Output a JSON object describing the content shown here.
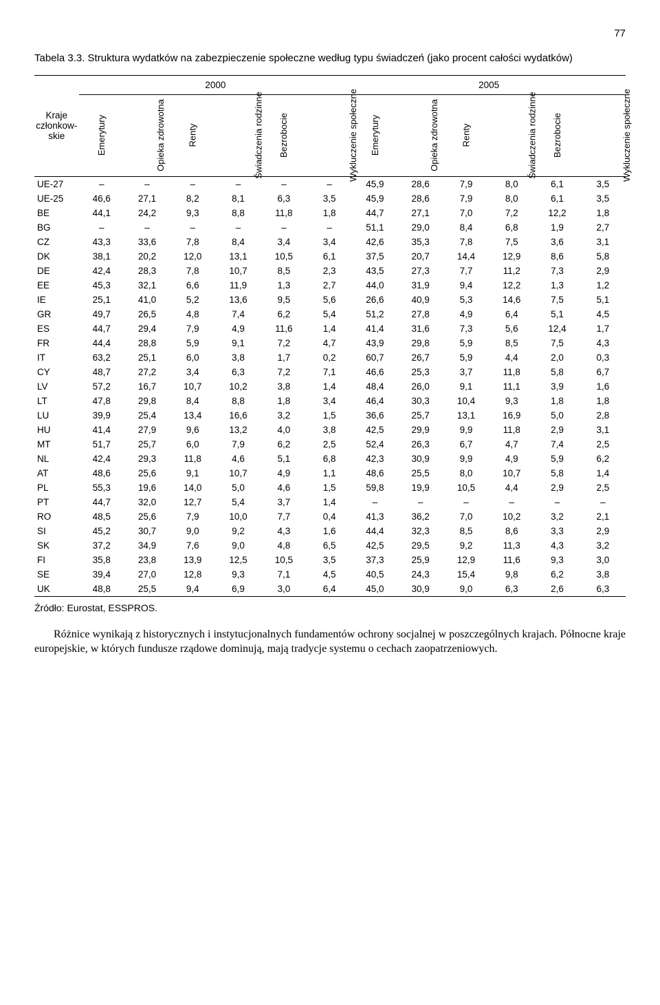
{
  "page_number": "77",
  "caption": "Tabela 3.3. Struktura wydatków na zabezpieczenie społeczne według typu świadczeń (jako procent całości wydatków)",
  "year_headers": [
    "2000",
    "2005"
  ],
  "row_label_header": "Kraje człon­kow­skie",
  "col_headers": [
    "Emerytury",
    "Opieka zdro­wotna",
    "Renty",
    "Świadczenia rodzinne",
    "Bezrobocie",
    "Wykluczenie społeczne",
    "Emerytury",
    "Opieka zdro­wotna",
    "Renty",
    "Świadczenia rodzinne",
    "Bezrobocie",
    "Wykluczenie społeczne"
  ],
  "rows": [
    {
      "label": "UE-27",
      "v": [
        "–",
        "–",
        "–",
        "–",
        "–",
        "–",
        "45,9",
        "28,6",
        "7,9",
        "8,0",
        "6,1",
        "3,5"
      ]
    },
    {
      "label": "UE-25",
      "v": [
        "46,6",
        "27,1",
        "8,2",
        "8,1",
        "6,3",
        "3,5",
        "45,9",
        "28,6",
        "7,9",
        "8,0",
        "6,1",
        "3,5"
      ]
    },
    {
      "label": "BE",
      "v": [
        "44,1",
        "24,2",
        "9,3",
        "8,8",
        "11,8",
        "1,8",
        "44,7",
        "27,1",
        "7,0",
        "7,2",
        "12,2",
        "1,8"
      ]
    },
    {
      "label": "BG",
      "v": [
        "–",
        "–",
        "–",
        "–",
        "–",
        "–",
        "51,1",
        "29,0",
        "8,4",
        "6,8",
        "1,9",
        "2,7"
      ]
    },
    {
      "label": "CZ",
      "v": [
        "43,3",
        "33,6",
        "7,8",
        "8,4",
        "3,4",
        "3,4",
        "42,6",
        "35,3",
        "7,8",
        "7,5",
        "3,6",
        "3,1"
      ]
    },
    {
      "label": "DK",
      "v": [
        "38,1",
        "20,2",
        "12,0",
        "13,1",
        "10,5",
        "6,1",
        "37,5",
        "20,7",
        "14,4",
        "12,9",
        "8,6",
        "5,8"
      ]
    },
    {
      "label": "DE",
      "v": [
        "42,4",
        "28,3",
        "7,8",
        "10,7",
        "8,5",
        "2,3",
        "43,5",
        "27,3",
        "7,7",
        "11,2",
        "7,3",
        "2,9"
      ]
    },
    {
      "label": "EE",
      "v": [
        "45,3",
        "32,1",
        "6,6",
        "11,9",
        "1,3",
        "2,7",
        "44,0",
        "31,9",
        "9,4",
        "12,2",
        "1,3",
        "1,2"
      ]
    },
    {
      "label": "IE",
      "v": [
        "25,1",
        "41,0",
        "5,2",
        "13,6",
        "9,5",
        "5,6",
        "26,6",
        "40,9",
        "5,3",
        "14,6",
        "7,5",
        "5,1"
      ]
    },
    {
      "label": "GR",
      "v": [
        "49,7",
        "26,5",
        "4,8",
        "7,4",
        "6,2",
        "5,4",
        "51,2",
        "27,8",
        "4,9",
        "6,4",
        "5,1",
        "4,5"
      ]
    },
    {
      "label": "ES",
      "v": [
        "44,7",
        "29,4",
        "7,9",
        "4,9",
        "11,6",
        "1,4",
        "41,4",
        "31,6",
        "7,3",
        "5,6",
        "12,4",
        "1,7"
      ]
    },
    {
      "label": "FR",
      "v": [
        "44,4",
        "28,8",
        "5,9",
        "9,1",
        "7,2",
        "4,7",
        "43,9",
        "29,8",
        "5,9",
        "8,5",
        "7,5",
        "4,3"
      ]
    },
    {
      "label": "IT",
      "v": [
        "63,2",
        "25,1",
        "6,0",
        "3,8",
        "1,7",
        "0,2",
        "60,7",
        "26,7",
        "5,9",
        "4,4",
        "2,0",
        "0,3"
      ]
    },
    {
      "label": "CY",
      "v": [
        "48,7",
        "27,2",
        "3,4",
        "6,3",
        "7,2",
        "7,1",
        "46,6",
        "25,3",
        "3,7",
        "11,8",
        "5,8",
        "6,7"
      ]
    },
    {
      "label": "LV",
      "v": [
        "57,2",
        "16,7",
        "10,7",
        "10,2",
        "3,8",
        "1,4",
        "48,4",
        "26,0",
        "9,1",
        "11,1",
        "3,9",
        "1,6"
      ]
    },
    {
      "label": "LT",
      "v": [
        "47,8",
        "29,8",
        "8,4",
        "8,8",
        "1,8",
        "3,4",
        "46,4",
        "30,3",
        "10,4",
        "9,3",
        "1,8",
        "1,8"
      ]
    },
    {
      "label": "LU",
      "v": [
        "39,9",
        "25,4",
        "13,4",
        "16,6",
        "3,2",
        "1,5",
        "36,6",
        "25,7",
        "13,1",
        "16,9",
        "5,0",
        "2,8"
      ]
    },
    {
      "label": "HU",
      "v": [
        "41,4",
        "27,9",
        "9,6",
        "13,2",
        "4,0",
        "3,8",
        "42,5",
        "29,9",
        "9,9",
        "11,8",
        "2,9",
        "3,1"
      ]
    },
    {
      "label": "MT",
      "v": [
        "51,7",
        "25,7",
        "6,0",
        "7,9",
        "6,2",
        "2,5",
        "52,4",
        "26,3",
        "6,7",
        "4,7",
        "7,4",
        "2,5"
      ]
    },
    {
      "label": "NL",
      "v": [
        "42,4",
        "29,3",
        "11,8",
        "4,6",
        "5,1",
        "6,8",
        "42,3",
        "30,9",
        "9,9",
        "4,9",
        "5,9",
        "6,2"
      ]
    },
    {
      "label": "AT",
      "v": [
        "48,6",
        "25,6",
        "9,1",
        "10,7",
        "4,9",
        "1,1",
        "48,6",
        "25,5",
        "8,0",
        "10,7",
        "5,8",
        "1,4"
      ]
    },
    {
      "label": "PL",
      "v": [
        "55,3",
        "19,6",
        "14,0",
        "5,0",
        "4,6",
        "1,5",
        "59,8",
        "19,9",
        "10,5",
        "4,4",
        "2,9",
        "2,5"
      ]
    },
    {
      "label": "PT",
      "v": [
        "44,7",
        "32,0",
        "12,7",
        "5,4",
        "3,7",
        "1,4",
        "–",
        "–",
        "–",
        "–",
        "–",
        "–"
      ]
    },
    {
      "label": "RO",
      "v": [
        "48,5",
        "25,6",
        "7,9",
        "10,0",
        "7,7",
        "0,4",
        "41,3",
        "36,2",
        "7,0",
        "10,2",
        "3,2",
        "2,1"
      ]
    },
    {
      "label": "SI",
      "v": [
        "45,2",
        "30,7",
        "9,0",
        "9,2",
        "4,3",
        "1,6",
        "44,4",
        "32,3",
        "8,5",
        "8,6",
        "3,3",
        "2,9"
      ]
    },
    {
      "label": "SK",
      "v": [
        "37,2",
        "34,9",
        "7,6",
        "9,0",
        "4,8",
        "6,5",
        "42,5",
        "29,5",
        "9,2",
        "11,3",
        "4,3",
        "3,2"
      ]
    },
    {
      "label": "FI",
      "v": [
        "35,8",
        "23,8",
        "13,9",
        "12,5",
        "10,5",
        "3,5",
        "37,3",
        "25,9",
        "12,9",
        "11,6",
        "9,3",
        "3,0"
      ]
    },
    {
      "label": "SE",
      "v": [
        "39,4",
        "27,0",
        "12,8",
        "9,3",
        "7,1",
        "4,5",
        "40,5",
        "24,3",
        "15,4",
        "9,8",
        "6,2",
        "3,8"
      ]
    },
    {
      "label": "UK",
      "v": [
        "48,8",
        "25,5",
        "9,4",
        "6,9",
        "3,0",
        "6,4",
        "45,0",
        "30,9",
        "9,0",
        "6,3",
        "2,6",
        "6,3"
      ]
    }
  ],
  "source": "Źródło: Eurostat, ESSPROS.",
  "body_text": "Różnice wynikają z historycznych i instytucjonalnych fundamentów ochrony socjalnej w poszczególnych krajach. Północne kraje europejskie, w których fundusze rządowe dominują, mają tradycje systemu o cechach zaopatrzeniowych."
}
